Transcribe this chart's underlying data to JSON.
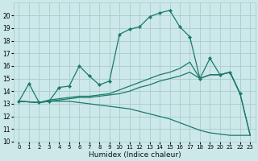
{
  "xlabel": "Humidex (Indice chaleur)",
  "xlim": [
    -0.5,
    23.5
  ],
  "ylim": [
    10,
    21
  ],
  "xticks": [
    0,
    1,
    2,
    3,
    4,
    5,
    6,
    7,
    8,
    9,
    10,
    11,
    12,
    13,
    14,
    15,
    16,
    17,
    18,
    19,
    20,
    21,
    22,
    23
  ],
  "yticks": [
    10,
    11,
    12,
    13,
    14,
    15,
    16,
    17,
    18,
    19,
    20
  ],
  "bg_color": "#cce8e8",
  "grid_color": "#aacccc",
  "line_color": "#1a7a6a",
  "line1_x": [
    0,
    1,
    2,
    3,
    4,
    5,
    6,
    7,
    8,
    9,
    10,
    11,
    12,
    13,
    14,
    15,
    16,
    17,
    18,
    19,
    20,
    21,
    22
  ],
  "line1_y": [
    13.2,
    14.6,
    13.1,
    13.2,
    14.3,
    14.4,
    16.0,
    15.2,
    14.5,
    14.8,
    18.5,
    18.9,
    19.1,
    19.9,
    20.2,
    20.4,
    19.1,
    18.3,
    15.0,
    16.6,
    15.3,
    15.5,
    13.8
  ],
  "line2_x": [
    0,
    2,
    3,
    4,
    5,
    6,
    7,
    8,
    9,
    10,
    11,
    12,
    13,
    14,
    15,
    16,
    17,
    18,
    19,
    20,
    21,
    22,
    23
  ],
  "line2_y": [
    13.2,
    13.1,
    13.3,
    13.4,
    13.5,
    13.6,
    13.6,
    13.7,
    13.8,
    14.1,
    14.4,
    14.7,
    15.0,
    15.3,
    15.5,
    15.8,
    16.3,
    15.0,
    15.3,
    15.3,
    15.5,
    13.8,
    10.5
  ],
  "line3_x": [
    0,
    2,
    3,
    4,
    5,
    6,
    7,
    8,
    9,
    10,
    11,
    12,
    13,
    14,
    15,
    16,
    17,
    18,
    19,
    20,
    21,
    22,
    23
  ],
  "line3_y": [
    13.2,
    13.1,
    13.2,
    13.3,
    13.4,
    13.5,
    13.5,
    13.6,
    13.7,
    13.8,
    14.0,
    14.3,
    14.5,
    14.8,
    15.0,
    15.2,
    15.5,
    15.0,
    15.3,
    15.3,
    15.5,
    13.8,
    10.5
  ],
  "line4_x": [
    0,
    2,
    3,
    4,
    5,
    6,
    7,
    8,
    9,
    10,
    11,
    12,
    13,
    14,
    15,
    16,
    17,
    18,
    19,
    20,
    21,
    22,
    23
  ],
  "line4_y": [
    13.2,
    13.1,
    13.2,
    13.2,
    13.2,
    13.1,
    13.0,
    12.9,
    12.8,
    12.7,
    12.6,
    12.4,
    12.2,
    12.0,
    11.8,
    11.5,
    11.2,
    10.9,
    10.7,
    10.6,
    10.5,
    10.5,
    10.5
  ]
}
